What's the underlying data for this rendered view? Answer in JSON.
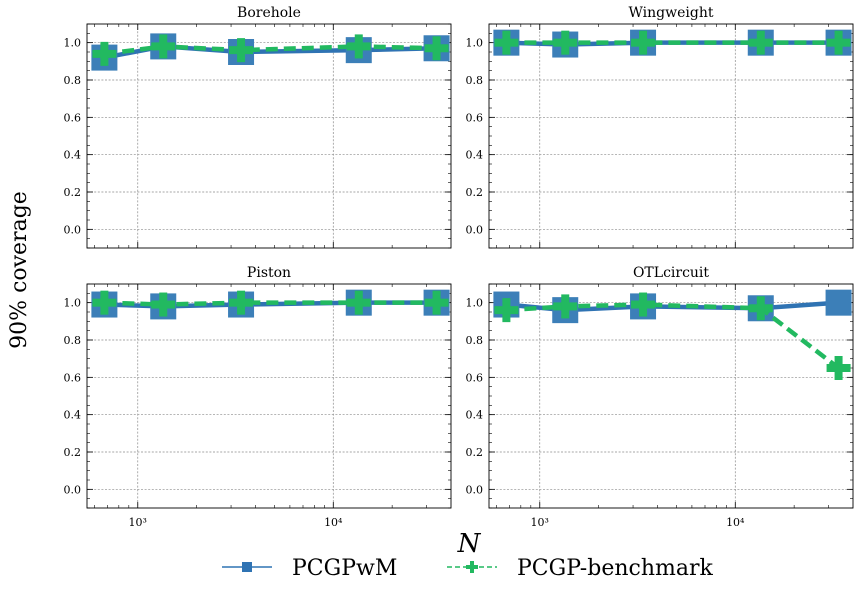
{
  "figure": {
    "ylabel": "90% coverage",
    "xlabel": "N",
    "colors": {
      "pcgpwm": "#2f73b3",
      "pcgpwm_marker": "#3c7fb8",
      "benchmark": "#22b960"
    }
  },
  "legend": {
    "placement": "bottom-center",
    "entries": [
      {
        "name": "PCGPwM",
        "color": "#2f73b3",
        "style": "solid",
        "marker": "square"
      },
      {
        "name": "PCGP-benchmark",
        "color": "#22b960",
        "style": "dashed",
        "marker": "plus"
      }
    ]
  },
  "chart_data": [
    {
      "type": "line",
      "title": "Borehole",
      "x_scale": "log",
      "xlim": [
        550,
        40000
      ],
      "ylim": [
        -0.1,
        1.1
      ],
      "yticks": [
        0.0,
        0.2,
        0.4,
        0.6,
        0.8,
        1.0
      ],
      "ytick_labels": [
        "0.0",
        "0.2",
        "0.4",
        "0.6",
        "0.8",
        "1.0"
      ],
      "xticks": [
        1000,
        10000
      ],
      "xtick_labels": [
        "10³",
        "10⁴"
      ],
      "show_xtick_labels": false,
      "grid": true,
      "x": [
        675,
        1350,
        3375,
        13500,
        33750
      ],
      "series": [
        {
          "name": "PCGPwM",
          "values": [
            0.92,
            0.98,
            0.95,
            0.96,
            0.97
          ]
        },
        {
          "name": "PCGP-benchmark",
          "values": [
            0.94,
            0.98,
            0.96,
            0.98,
            0.97
          ]
        }
      ]
    },
    {
      "type": "line",
      "title": "Wingweight",
      "x_scale": "log",
      "xlim": [
        550,
        40000
      ],
      "ylim": [
        -0.1,
        1.1
      ],
      "yticks": [
        0.0,
        0.2,
        0.4,
        0.6,
        0.8,
        1.0
      ],
      "ytick_labels": [
        "0.0",
        "0.2",
        "0.4",
        "0.6",
        "0.8",
        "1.0"
      ],
      "xticks": [
        1000,
        10000
      ],
      "xtick_labels": [
        "10³",
        "10⁴"
      ],
      "show_xtick_labels": false,
      "grid": true,
      "x": [
        675,
        1350,
        3375,
        13500,
        33750
      ],
      "series": [
        {
          "name": "PCGPwM",
          "values": [
            1.0,
            0.99,
            1.0,
            1.0,
            1.0
          ]
        },
        {
          "name": "PCGP-benchmark",
          "values": [
            1.0,
            1.0,
            1.0,
            1.0,
            1.0
          ]
        }
      ]
    },
    {
      "type": "line",
      "title": "Piston",
      "x_scale": "log",
      "xlim": [
        550,
        40000
      ],
      "ylim": [
        -0.1,
        1.1
      ],
      "yticks": [
        0.0,
        0.2,
        0.4,
        0.6,
        0.8,
        1.0
      ],
      "ytick_labels": [
        "0.0",
        "0.2",
        "0.4",
        "0.6",
        "0.8",
        "1.0"
      ],
      "xticks": [
        1000,
        10000
      ],
      "xtick_labels": [
        "10³",
        "10⁴"
      ],
      "show_xtick_labels": true,
      "grid": true,
      "x": [
        675,
        1350,
        3375,
        13500,
        33750
      ],
      "series": [
        {
          "name": "PCGPwM",
          "values": [
            0.99,
            0.98,
            0.99,
            1.0,
            1.0
          ]
        },
        {
          "name": "PCGP-benchmark",
          "values": [
            1.0,
            0.99,
            1.0,
            1.0,
            1.0
          ]
        }
      ]
    },
    {
      "type": "line",
      "title": "OTLcircuit",
      "x_scale": "log",
      "xlim": [
        550,
        40000
      ],
      "ylim": [
        -0.1,
        1.1
      ],
      "yticks": [
        0.0,
        0.2,
        0.4,
        0.6,
        0.8,
        1.0
      ],
      "ytick_labels": [
        "0.0",
        "0.2",
        "0.4",
        "0.6",
        "0.8",
        "1.0"
      ],
      "xticks": [
        1000,
        10000
      ],
      "xtick_labels": [
        "10³",
        "10⁴"
      ],
      "show_xtick_labels": true,
      "grid": true,
      "x": [
        675,
        1350,
        3375,
        13500,
        33750
      ],
      "series": [
        {
          "name": "PCGPwM",
          "values": [
            0.99,
            0.96,
            0.98,
            0.97,
            1.0
          ]
        },
        {
          "name": "PCGP-benchmark",
          "values": [
            0.96,
            0.98,
            0.99,
            0.97,
            0.65
          ]
        }
      ]
    }
  ]
}
